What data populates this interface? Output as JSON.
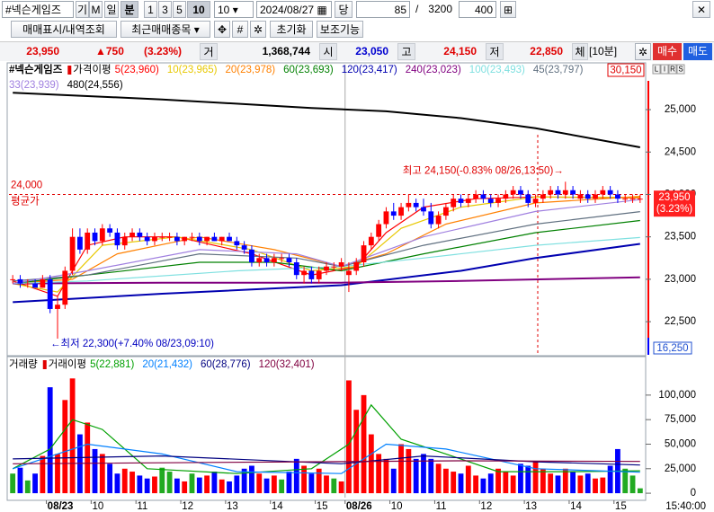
{
  "toolbar": {
    "symbol": "#넥슨게임즈",
    "buttons": [
      "기",
      "M",
      "일",
      "분",
      "1",
      "3",
      "5",
      "10"
    ],
    "interval": "10",
    "date": "2024/08/27",
    "count_label": "당",
    "count": "85",
    "slash": "/",
    "total": "3200",
    "zoom": "400"
  },
  "actions": [
    "매매표시/내역조회",
    "최근매매종목",
    "초기화",
    "보조기능"
  ],
  "quote": {
    "price": "23,950",
    "change": "▲750",
    "pct": "(3.23%)",
    "vol_label": "거",
    "volume": "1,368,744",
    "open_label": "시",
    "open": "23,050",
    "high_label": "고",
    "high": "24,150",
    "low_label": "저",
    "low": "22,850",
    "fill_label": "체",
    "period": "[10분]",
    "buy": "매수",
    "sell": "매도"
  },
  "status_time": "15:40:00",
  "chart_data": [
    {
      "type": "candlestick",
      "title": "#넥슨게임즈",
      "up_color": "#ff0000",
      "down_color": "#0000ff",
      "open": [
        23000,
        23000,
        22950,
        22950,
        22900,
        23000,
        22650,
        22700,
        23100,
        23500,
        23350,
        23550,
        23450,
        23600,
        23550,
        23400,
        23500,
        23550,
        23500,
        23450,
        23500,
        23500,
        23500,
        23450,
        23500,
        23500,
        23450,
        23500,
        23450,
        23500,
        23450,
        23400,
        23350,
        23200,
        23250,
        23200,
        23250,
        23250,
        23200,
        23050,
        23100,
        23000,
        23100,
        23150,
        23150,
        23050,
        23100,
        23200,
        23400,
        23500,
        23650,
        23800,
        23750,
        23850,
        23900,
        23850,
        23800,
        23650,
        23750,
        23850,
        23950,
        23900,
        23950,
        24000,
        23950,
        23900,
        23950,
        24000,
        24050,
        24000,
        23900,
        23950,
        24000,
        24050,
        24000,
        24050,
        23950,
        24000,
        23950,
        24000,
        24050,
        24000,
        23950,
        23950,
        23950
      ],
      "high": [
        23050,
        23050,
        23000,
        23000,
        23050,
        23050,
        22800,
        23150,
        23600,
        23600,
        23600,
        23600,
        23650,
        23650,
        23600,
        23550,
        23600,
        23600,
        23550,
        23550,
        23550,
        23550,
        23550,
        23500,
        23550,
        23550,
        23500,
        23550,
        23500,
        23550,
        23500,
        23450,
        23400,
        23300,
        23300,
        23300,
        23300,
        23300,
        23250,
        23150,
        23150,
        23150,
        23200,
        23200,
        23250,
        23200,
        23250,
        23450,
        23550,
        23700,
        23850,
        23900,
        23900,
        24000,
        23950,
        23950,
        23900,
        23800,
        23900,
        24000,
        24000,
        24000,
        24050,
        24050,
        24000,
        24000,
        24050,
        24100,
        24100,
        24050,
        24000,
        24050,
        24100,
        24100,
        24150,
        24100,
        24050,
        24050,
        24050,
        24100,
        24100,
        24050,
        24000,
        24000,
        24000
      ],
      "low": [
        22950,
        22900,
        22900,
        22900,
        22900,
        22600,
        22300,
        22650,
        23050,
        23300,
        23300,
        23400,
        23400,
        23500,
        23350,
        23350,
        23450,
        23450,
        23400,
        23400,
        23450,
        23450,
        23400,
        23400,
        23450,
        23400,
        23400,
        23450,
        23400,
        23450,
        23350,
        23300,
        23150,
        23150,
        23150,
        23150,
        23200,
        23150,
        23000,
        22950,
        22950,
        22950,
        23050,
        23100,
        23100,
        22850,
        23050,
        23150,
        23350,
        23450,
        23600,
        23700,
        23700,
        23800,
        23800,
        23750,
        23600,
        23600,
        23700,
        23800,
        23850,
        23850,
        23900,
        23900,
        23850,
        23850,
        23900,
        23950,
        23950,
        23850,
        23850,
        23900,
        23950,
        23950,
        23950,
        23950,
        23900,
        23900,
        23900,
        23950,
        23950,
        23900,
        23900,
        23900,
        23900
      ],
      "close": [
        23000,
        22950,
        22950,
        22900,
        23000,
        22650,
        22700,
        23100,
        23500,
        23350,
        23550,
        23450,
        23600,
        23550,
        23400,
        23500,
        23550,
        23500,
        23450,
        23500,
        23500,
        23500,
        23450,
        23500,
        23500,
        23450,
        23500,
        23450,
        23500,
        23450,
        23400,
        23350,
        23200,
        23250,
        23200,
        23250,
        23250,
        23200,
        23050,
        23100,
        23000,
        23100,
        23150,
        23150,
        23200,
        23100,
        23200,
        23400,
        23500,
        23650,
        23800,
        23750,
        23850,
        23900,
        23850,
        23800,
        23650,
        23750,
        23850,
        23950,
        23900,
        23950,
        24000,
        23950,
        23900,
        23950,
        24000,
        24050,
        24000,
        23900,
        23950,
        24000,
        24050,
        24000,
        24050,
        24000,
        24000,
        23950,
        24000,
        24050,
        24000,
        23950,
        23950,
        23950,
        23950
      ],
      "ylim": [
        22120,
        25530
      ],
      "yticks": [
        {
          "value": 22500,
          "label": "22,500"
        },
        {
          "value": 23000,
          "label": "23,000"
        },
        {
          "value": 23500,
          "label": "23,500"
        },
        {
          "value": 24000,
          "label": "24,000"
        },
        {
          "value": 24500,
          "label": "24,500"
        },
        {
          "value": 25000,
          "label": "25,000"
        }
      ],
      "ma_prefix": "가격이평",
      "overlays": [
        {
          "name": "5(23,960)",
          "color": "#ff0000",
          "width": 1.2,
          "x": [
            0,
            6,
            10,
            15,
            22,
            32,
            40,
            46,
            50,
            55,
            62,
            70,
            84
          ],
          "values": [
            22980,
            22800,
            23400,
            23500,
            23500,
            23300,
            23050,
            23150,
            23550,
            23850,
            23950,
            23970,
            23960
          ]
        },
        {
          "name": "10(23,965)",
          "color": "#e8c800",
          "width": 1.2,
          "x": [
            0,
            6,
            12,
            22,
            32,
            40,
            46,
            52,
            60,
            70,
            84
          ],
          "values": [
            22950,
            22850,
            23400,
            23500,
            23350,
            23100,
            23150,
            23600,
            23850,
            23970,
            23965
          ]
        },
        {
          "name": "20(23,978)",
          "color": "#ff8000",
          "width": 1.2,
          "x": [
            0,
            8,
            14,
            25,
            35,
            44,
            50,
            58,
            70,
            84
          ],
          "values": [
            22950,
            23000,
            23300,
            23500,
            23350,
            23150,
            23300,
            23650,
            23900,
            23978
          ]
        },
        {
          "name": "60(23,693)",
          "color": "#008000",
          "width": 1.2,
          "x": [
            0,
            10,
            25,
            35,
            44,
            55,
            70,
            84
          ],
          "values": [
            22950,
            23050,
            23200,
            23200,
            23100,
            23300,
            23550,
            23693
          ]
        },
        {
          "name": "120(23,417)",
          "color": "#0000b0",
          "width": 2,
          "x": [
            0,
            20,
            44,
            60,
            70,
            84
          ],
          "values": [
            22730,
            22830,
            22930,
            23100,
            23250,
            23417
          ]
        },
        {
          "name": "240(23,023)",
          "color": "#800080",
          "width": 2,
          "x": [
            0,
            20,
            44,
            60,
            84
          ],
          "values": [
            22950,
            22960,
            22960,
            22980,
            23023
          ]
        },
        {
          "name": "100(23,493)",
          "color": "#7fe0e0",
          "width": 1.2,
          "x": [
            0,
            10,
            30,
            44,
            55,
            70,
            84
          ],
          "values": [
            22950,
            22980,
            23100,
            23150,
            23250,
            23400,
            23493
          ]
        },
        {
          "name": "45(23,797)",
          "color": "#607080",
          "width": 1.2,
          "x": [
            0,
            10,
            25,
            38,
            44,
            55,
            70,
            84
          ],
          "values": [
            22980,
            23050,
            23300,
            23250,
            23150,
            23400,
            23650,
            23797
          ]
        },
        {
          "name": "33(23,939)",
          "color": "#a080e0",
          "width": 1.2,
          "x": [
            0,
            10,
            25,
            38,
            44,
            55,
            70,
            84
          ],
          "values": [
            22950,
            23100,
            23350,
            23300,
            23150,
            23500,
            23800,
            23939
          ]
        },
        {
          "name": "480(24,556)",
          "color": "#000000",
          "width": 2,
          "x": [
            0,
            20,
            40,
            50,
            60,
            70,
            84
          ],
          "values": [
            25200,
            25120,
            25020,
            24980,
            24900,
            24780,
            24556
          ]
        }
      ],
      "avg_line": {
        "value": 24000,
        "label": "24,000",
        "name": "평균가",
        "color": "#e00000"
      },
      "annotations": [
        {
          "x": 74,
          "value": 24150,
          "text": "최고 24,150(-0.83% 08/26,13:50)→",
          "color": "#e00000",
          "side": "left"
        },
        {
          "x": 6,
          "value": 22300,
          "text": "←최저 22,300(+7.40% 08/23,09:10)",
          "color": "#0000c0",
          "side": "right"
        }
      ],
      "current": {
        "value": 23950,
        "label": "23,950",
        "pct": "(3.23%)"
      },
      "top_box": "30,150",
      "bottom_box": "16,250",
      "axis_icons": [
        "L",
        "I",
        "R",
        "S"
      ]
    },
    {
      "type": "bar",
      "title": "거래량",
      "up_color": "#ff0000",
      "down_color": "#0000ff",
      "flat_color": "#22aa22",
      "categories": [
        null,
        null,
        null,
        null,
        null,
        "08/23",
        null,
        null,
        null,
        null,
        null,
        "10",
        null,
        null,
        null,
        null,
        null,
        "11",
        null,
        null,
        null,
        null,
        null,
        "12",
        null,
        null,
        null,
        null,
        null,
        "13",
        null,
        null,
        null,
        null,
        null,
        "14",
        null,
        null,
        null,
        null,
        null,
        "15",
        null,
        null,
        null,
        "08/26",
        null,
        null,
        null,
        null,
        null,
        "10",
        null,
        null,
        null,
        null,
        null,
        "11",
        null,
        null,
        null,
        null,
        null,
        "12",
        null,
        null,
        null,
        null,
        null,
        "13",
        null,
        null,
        null,
        null,
        null,
        "14",
        null,
        null,
        null,
        null,
        null,
        "15",
        null,
        null,
        null
      ],
      "values": [
        20000,
        26000,
        13000,
        20000,
        38000,
        108000,
        40000,
        95000,
        117000,
        60000,
        72000,
        45000,
        40000,
        30000,
        20000,
        25000,
        22000,
        18000,
        15000,
        17000,
        26000,
        22000,
        15000,
        12000,
        20000,
        16000,
        18000,
        22000,
        14000,
        12000,
        18000,
        25000,
        28000,
        20000,
        15000,
        18000,
        14000,
        22000,
        35000,
        28000,
        20000,
        25000,
        18000,
        15000,
        12000,
        115000,
        85000,
        100000,
        60000,
        40000,
        35000,
        25000,
        50000,
        45000,
        35000,
        40000,
        35000,
        30000,
        25000,
        22000,
        20000,
        28000,
        18000,
        15000,
        20000,
        25000,
        22000,
        18000,
        30000,
        28000,
        32000,
        25000,
        20000,
        18000,
        25000,
        22000,
        18000,
        20000,
        15000,
        16000,
        28000,
        45000,
        25000,
        18000,
        5000
      ],
      "ylim": [
        -4500,
        136500
      ],
      "yticks": [
        0,
        {
          "value": 25000,
          "label": "25,000"
        },
        {
          "value": 50000,
          "label": "50,000"
        },
        {
          "value": 75000,
          "label": "75,000"
        },
        {
          "value": 100000,
          "label": "100,000"
        }
      ],
      "ma_prefix": "거래이평",
      "overlays": [
        {
          "name": "5(22,881)",
          "color": "#00a000",
          "width": 1.2,
          "x": [
            0,
            5,
            8,
            12,
            18,
            30,
            40,
            45,
            48,
            52,
            58,
            65,
            75,
            84
          ],
          "values": [
            25000,
            45000,
            75000,
            65000,
            25000,
            20000,
            25000,
            50000,
            90000,
            55000,
            40000,
            22000,
            22000,
            22881
          ]
        },
        {
          "name": "20(21,432)",
          "color": "#0080ff",
          "width": 1.2,
          "x": [
            0,
            10,
            20,
            30,
            44,
            50,
            58,
            70,
            84
          ],
          "values": [
            25000,
            50000,
            40000,
            22000,
            20000,
            50000,
            45000,
            25000,
            21432
          ]
        },
        {
          "name": "60(28,776)",
          "color": "#000080",
          "width": 1.2,
          "x": [
            0,
            20,
            44,
            55,
            70,
            84
          ],
          "values": [
            35000,
            38000,
            30000,
            38000,
            32000,
            28776
          ]
        },
        {
          "name": "120(32,401)",
          "color": "#800040",
          "width": 1.2,
          "x": [
            0,
            40,
            60,
            84
          ],
          "values": [
            30000,
            32000,
            33000,
            32401
          ]
        }
      ]
    }
  ]
}
